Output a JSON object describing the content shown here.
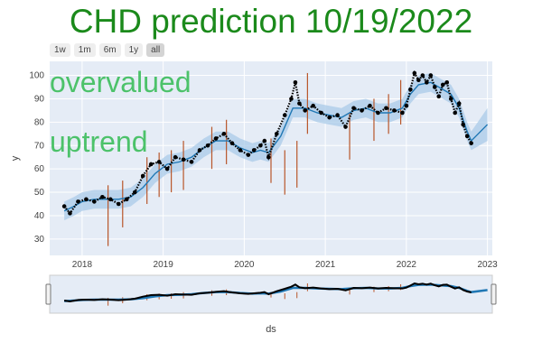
{
  "title": "CHD prediction 10/19/2022",
  "range_buttons": [
    "1w",
    "1m",
    "6m",
    "1y",
    "all"
  ],
  "range_active": "all",
  "annotations": [
    "overvalued",
    "uptrend"
  ],
  "colors": {
    "title": "#1b8a1b",
    "annotation": "#4cc26a",
    "actual": "#000000",
    "forecast": "#1f77b4",
    "band": "#a9cbe8",
    "changepoint": "#b8562a",
    "plot_bg": "#e5ecf6"
  },
  "chart_data": {
    "type": "line",
    "xlabel": "ds",
    "ylabel": "y",
    "xlim": [
      2017.6,
      2023.06
    ],
    "ylim": [
      23,
      106
    ],
    "x_ticks": [
      "2018",
      "2019",
      "2020",
      "2021",
      "2022",
      "2023"
    ],
    "y_ticks": [
      30,
      40,
      50,
      60,
      70,
      80,
      90,
      100
    ],
    "grid": true,
    "series": [
      {
        "x": [
          2017.78,
          2017.85,
          2017.95,
          2018.05,
          2018.15,
          2018.25,
          2018.35,
          2018.45,
          2018.55,
          2018.65,
          2018.75,
          2018.85,
          2018.95,
          2019.05,
          2019.15,
          2019.25,
          2019.35,
          2019.45,
          2019.55,
          2019.65,
          2019.75,
          2019.85,
          2019.95,
          2020.05,
          2020.12,
          2020.2,
          2020.25,
          2020.3,
          2020.4,
          2020.5,
          2020.58,
          2020.63,
          2020.68,
          2020.75,
          2020.85,
          2020.95,
          2021.05,
          2021.15,
          2021.25,
          2021.35,
          2021.45,
          2021.55,
          2021.65,
          2021.75,
          2021.85,
          2021.95,
          2022.0,
          2022.05,
          2022.1,
          2022.15,
          2022.2,
          2022.25,
          2022.3,
          2022.35,
          2022.4,
          2022.45,
          2022.5,
          2022.55,
          2022.6,
          2022.65,
          2022.7,
          2022.75,
          2022.8
        ],
        "y": [
          44,
          41,
          46,
          47,
          46,
          48,
          47,
          45,
          47,
          50,
          57,
          62,
          63,
          60,
          65,
          64,
          63,
          68,
          70,
          73,
          75,
          71,
          68,
          66,
          68,
          70,
          72,
          65,
          75,
          83,
          90,
          97,
          88,
          85,
          87,
          84,
          82,
          83,
          78,
          86,
          85,
          87,
          84,
          86,
          85,
          84,
          87,
          94,
          101,
          98,
          100,
          97,
          100,
          95,
          91,
          96,
          97,
          90,
          84,
          88,
          79,
          74,
          71
        ]
      },
      {
        "x": [
          2017.78,
          2017.9,
          2018.0,
          2018.15,
          2018.3,
          2018.45,
          2018.6,
          2018.75,
          2018.9,
          2019.05,
          2019.2,
          2019.35,
          2019.5,
          2019.65,
          2019.8,
          2019.95,
          2020.1,
          2020.2,
          2020.3,
          2020.45,
          2020.6,
          2020.75,
          2020.9,
          2021.05,
          2021.2,
          2021.35,
          2021.5,
          2021.65,
          2021.8,
          2021.95,
          2022.05,
          2022.15,
          2022.3,
          2022.45,
          2022.55,
          2022.65,
          2022.75,
          2022.8,
          2023.0
        ],
        "y": [
          42,
          44,
          46,
          47,
          47,
          47,
          48,
          52,
          58,
          62,
          63,
          65,
          69,
          72,
          72,
          69,
          67,
          68,
          67,
          74,
          86,
          86,
          84,
          83,
          82,
          85,
          86,
          84,
          84,
          86,
          92,
          96,
          97,
          94,
          92,
          86,
          76,
          72,
          79
        ],
        "lower": [
          38,
          40,
          42,
          43,
          43,
          43,
          44,
          48,
          54,
          58,
          59,
          61,
          65,
          68,
          68,
          65,
          63,
          64,
          63,
          70,
          82,
          82,
          80,
          79,
          78,
          81,
          82,
          80,
          80,
          82,
          88,
          92,
          93,
          90,
          88,
          82,
          72,
          68,
          72
        ],
        "upper": [
          46,
          48,
          50,
          51,
          51,
          51,
          52,
          56,
          62,
          66,
          67,
          69,
          73,
          76,
          76,
          73,
          71,
          72,
          71,
          78,
          90,
          90,
          88,
          87,
          86,
          89,
          90,
          88,
          88,
          90,
          96,
          100,
          101,
          98,
          96,
          90,
          80,
          76,
          86
        ]
      }
    ],
    "changepoints": [
      {
        "x": 2018.32,
        "low": 27,
        "high": 53
      },
      {
        "x": 2018.5,
        "low": 35,
        "high": 55
      },
      {
        "x": 2018.8,
        "low": 45,
        "high": 65
      },
      {
        "x": 2018.95,
        "low": 48,
        "high": 67
      },
      {
        "x": 2019.1,
        "low": 50,
        "high": 68
      },
      {
        "x": 2019.25,
        "low": 51,
        "high": 72
      },
      {
        "x": 2019.6,
        "low": 60,
        "high": 78
      },
      {
        "x": 2019.78,
        "low": 62,
        "high": 81
      },
      {
        "x": 2020.33,
        "low": 54,
        "high": 73
      },
      {
        "x": 2020.5,
        "low": 49,
        "high": 68
      },
      {
        "x": 2020.65,
        "low": 52,
        "high": 72
      },
      {
        "x": 2020.78,
        "low": 75,
        "high": 101
      },
      {
        "x": 2021.3,
        "low": 64,
        "high": 84
      },
      {
        "x": 2021.6,
        "low": 72,
        "high": 90
      },
      {
        "x": 2021.78,
        "low": 75,
        "high": 92
      },
      {
        "x": 2021.93,
        "low": 79,
        "high": 98
      }
    ]
  }
}
